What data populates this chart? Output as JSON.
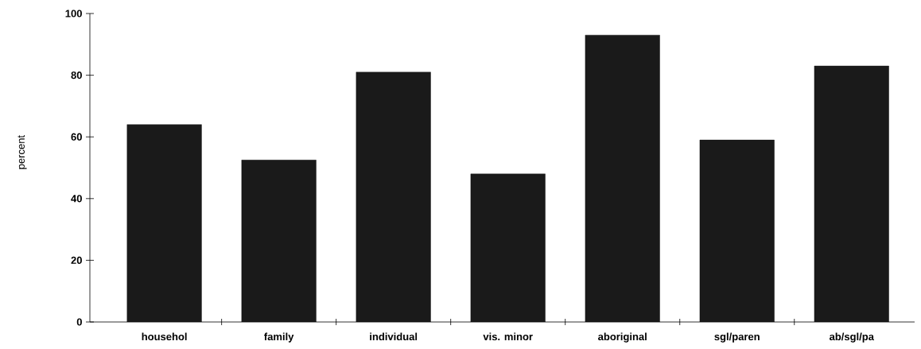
{
  "chart_data": {
    "type": "bar",
    "ylabel": "percent",
    "categories": [
      "househol",
      "family",
      "individual",
      "vis. minor",
      "aboriginal",
      "sgl/paren",
      "ab/sgl/pa"
    ],
    "values": [
      64,
      52.5,
      81,
      48,
      93,
      59,
      83
    ],
    "color": "#1a1a1a",
    "ylim": [
      0,
      100
    ],
    "yticks": [
      0,
      20,
      40,
      60,
      80,
      100
    ],
    "grid": false
  }
}
